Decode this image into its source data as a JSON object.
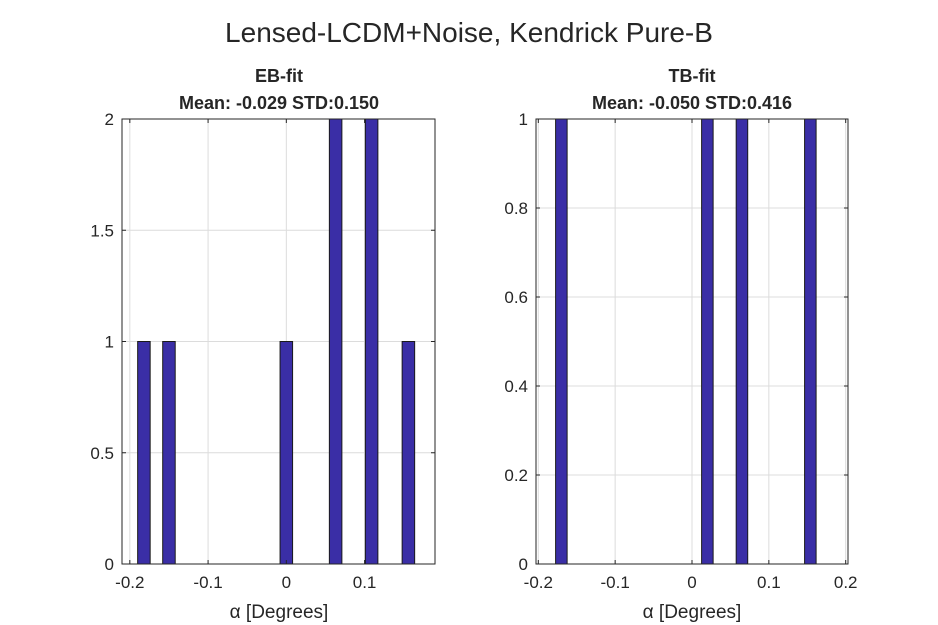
{
  "figure": {
    "suptitle": "Lensed-LCDM+Noise, Kendrick Pure-B"
  },
  "colors": {
    "bar_fill": "#3a2ea6",
    "bar_edge": "#1a1a1a",
    "grid": "#dcdcdc",
    "axis": "#262626"
  },
  "chart_data": [
    {
      "type": "bar",
      "title": "EB-fit",
      "subtitle": "Mean: -0.029 STD:0.150",
      "xlabel": "α [Degrees]",
      "ylabel": "",
      "xlim": [
        -0.21,
        0.19
      ],
      "ylim": [
        0,
        2
      ],
      "xticks": [
        -0.2,
        -0.1,
        0,
        0.1
      ],
      "xtick_labels": [
        "-0.2",
        "-0.1",
        "0",
        "0.1"
      ],
      "yticks": [
        0,
        0.5,
        1,
        1.5,
        2
      ],
      "ytick_labels": [
        "0",
        "0.5",
        "1",
        "1.5",
        "2"
      ],
      "grid": true,
      "bar_width": 0.016,
      "x": [
        -0.182,
        -0.15,
        0.0,
        0.063,
        0.109,
        0.156
      ],
      "values": [
        1,
        1,
        1,
        2,
        2,
        1
      ]
    },
    {
      "type": "bar",
      "title": "TB-fit",
      "subtitle": "Mean: -0.050 STD:0.416",
      "xlabel": "α [Degrees]",
      "ylabel": "",
      "xlim": [
        -0.203,
        0.203
      ],
      "ylim": [
        0,
        1
      ],
      "xticks": [
        -0.2,
        -0.1,
        0,
        0.1,
        0.2
      ],
      "xtick_labels": [
        "-0.2",
        "-0.1",
        "0",
        "0.1",
        "0.2"
      ],
      "yticks": [
        0,
        0.2,
        0.4,
        0.6,
        0.8,
        1
      ],
      "ytick_labels": [
        "0",
        "0.2",
        "0.4",
        "0.6",
        "0.8",
        "1"
      ],
      "grid": true,
      "bar_width": 0.015,
      "x": [
        -0.17,
        0.02,
        0.065,
        0.154
      ],
      "values": [
        1,
        1,
        1,
        1
      ]
    }
  ]
}
